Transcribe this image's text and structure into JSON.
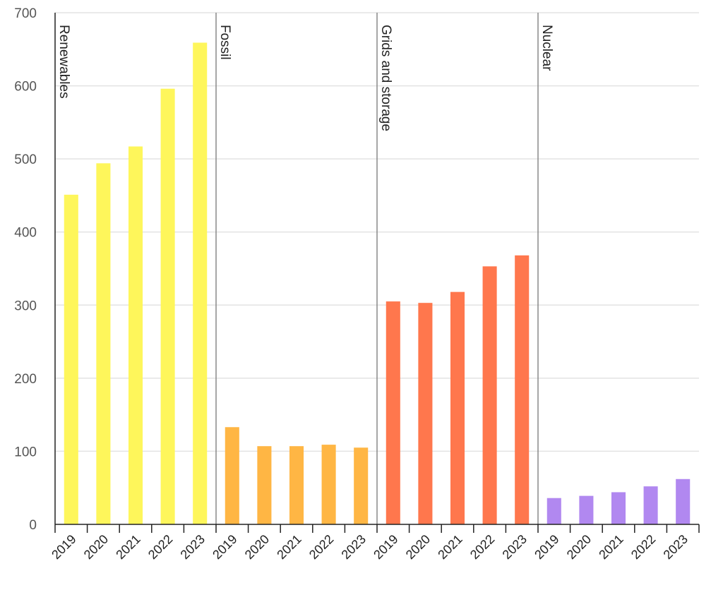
{
  "chart_data": {
    "type": "bar",
    "ylim": [
      0,
      700
    ],
    "yticks": [
      0,
      100,
      200,
      300,
      400,
      500,
      600,
      700
    ],
    "grid": true,
    "groups": [
      {
        "name": "Renewables",
        "color": "#fef65b",
        "categories": [
          "2019",
          "2020",
          "2021",
          "2022",
          "2023"
        ],
        "values": [
          451,
          494,
          517,
          596,
          659
        ]
      },
      {
        "name": "Fossil",
        "color": "#ffb644",
        "categories": [
          "2019",
          "2020",
          "2021",
          "2022",
          "2023"
        ],
        "values": [
          133,
          107,
          107,
          109,
          105
        ]
      },
      {
        "name": "Grids and storage",
        "color": "#ff774d",
        "categories": [
          "2019",
          "2020",
          "2021",
          "2022",
          "2023"
        ],
        "values": [
          305,
          303,
          318,
          353,
          368
        ]
      },
      {
        "name": "Nuclear",
        "color": "#b188f0",
        "categories": [
          "2019",
          "2020",
          "2021",
          "2022",
          "2023"
        ],
        "values": [
          36,
          39,
          44,
          52,
          62
        ]
      }
    ]
  }
}
